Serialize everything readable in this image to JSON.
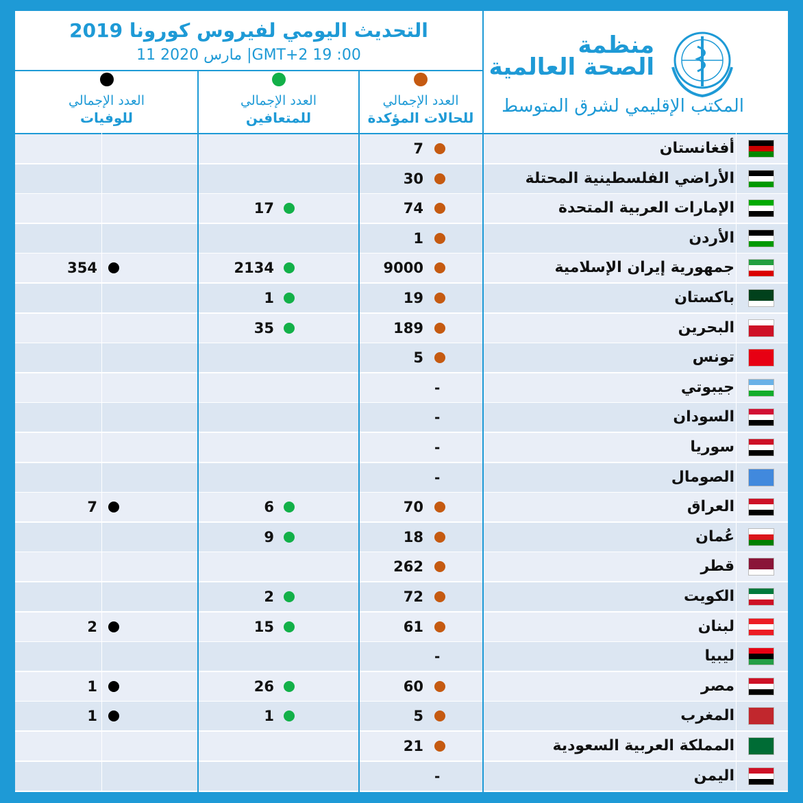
{
  "header": {
    "title": "التحديث اليومي لفيروس كورونا 2019",
    "subtitle": "11 مارس 2020 |GMT+2  19 :00",
    "org_line1": "منظمة",
    "org_line2": "الصحة العالمية",
    "org_region": "المكتب الإقليمي لشرق المتوسط"
  },
  "columns": {
    "confirmed": {
      "line1": "العدد الإجمالي",
      "line2": "للحالات المؤكدة"
    },
    "recovered": {
      "line1": "العدد الإجمالي",
      "line2": "للمتعافين"
    },
    "deaths": {
      "line1": "العدد الإجمالي",
      "line2": "للوفيات"
    }
  },
  "colors": {
    "accent": "#1e9ad6",
    "confirmed": "#c55a11",
    "recovered": "#12b048",
    "deaths": "#000000"
  },
  "rows": [
    {
      "country": "أفغانستان",
      "confirmed": "7",
      "recovered": "",
      "deaths": ""
    },
    {
      "country": "الأراضي الفلسطينية المحتلة",
      "confirmed": "30",
      "recovered": "",
      "deaths": ""
    },
    {
      "country": "الإمارات العربية المتحدة",
      "confirmed": "74",
      "recovered": "17",
      "deaths": ""
    },
    {
      "country": "الأردن",
      "confirmed": "1",
      "recovered": "",
      "deaths": ""
    },
    {
      "country": "جمهورية إيران الإسلامية",
      "confirmed": "9000",
      "recovered": "2134",
      "deaths": "354"
    },
    {
      "country": "باكستان",
      "confirmed": "19",
      "recovered": "1",
      "deaths": ""
    },
    {
      "country": "البحرين",
      "confirmed": "189",
      "recovered": "35",
      "deaths": ""
    },
    {
      "country": "تونس",
      "confirmed": "5",
      "recovered": "",
      "deaths": ""
    },
    {
      "country": "جيبوتي",
      "confirmed": "-",
      "recovered": "",
      "deaths": ""
    },
    {
      "country": "السودان",
      "confirmed": "-",
      "recovered": "",
      "deaths": ""
    },
    {
      "country": "سوريا",
      "confirmed": "-",
      "recovered": "",
      "deaths": ""
    },
    {
      "country": "الصومال",
      "confirmed": "-",
      "recovered": "",
      "deaths": ""
    },
    {
      "country": "العراق",
      "confirmed": "70",
      "recovered": "6",
      "deaths": "7"
    },
    {
      "country": "عُمان",
      "confirmed": "18",
      "recovered": "9",
      "deaths": ""
    },
    {
      "country": "قطر",
      "confirmed": "262",
      "recovered": "",
      "deaths": ""
    },
    {
      "country": "الكويت",
      "confirmed": "72",
      "recovered": "2",
      "deaths": ""
    },
    {
      "country": "لبنان",
      "confirmed": "61",
      "recovered": "15",
      "deaths": "2"
    },
    {
      "country": "ليبيا",
      "confirmed": "-",
      "recovered": "",
      "deaths": ""
    },
    {
      "country": "مصر",
      "confirmed": "60",
      "recovered": "26",
      "deaths": "1"
    },
    {
      "country": "المغرب",
      "confirmed": "5",
      "recovered": "1",
      "deaths": "1"
    },
    {
      "country": "المملكة العربية السعودية",
      "confirmed": "21",
      "recovered": "",
      "deaths": ""
    },
    {
      "country": "اليمن",
      "confirmed": "-",
      "recovered": "",
      "deaths": ""
    }
  ]
}
